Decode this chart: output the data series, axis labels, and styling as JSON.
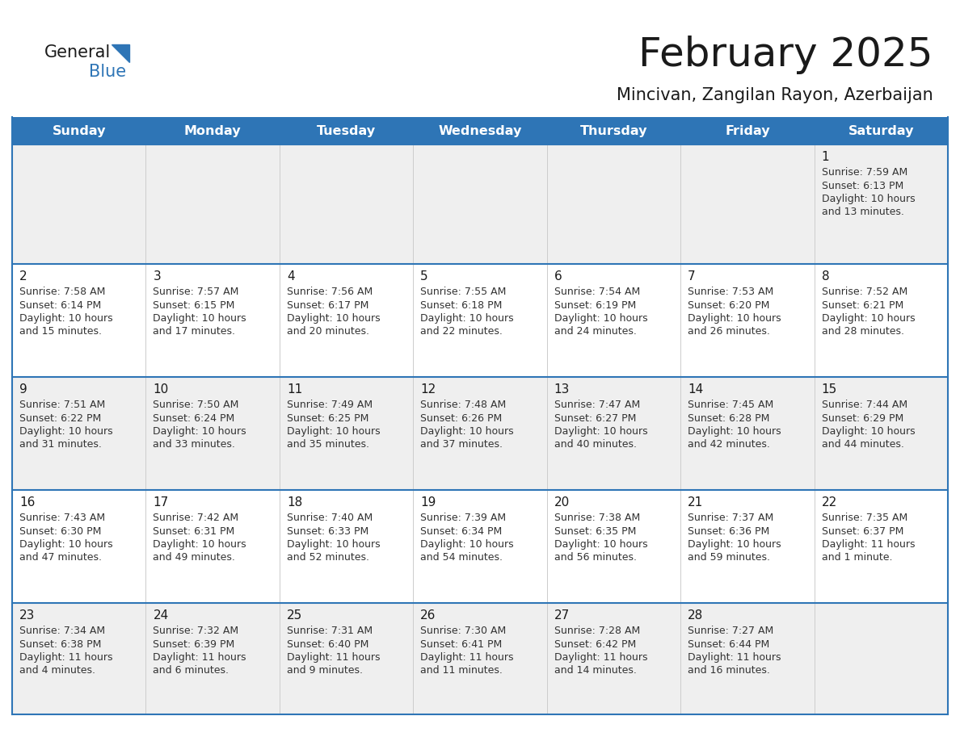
{
  "title": "February 2025",
  "subtitle": "Mincivan, Zangilan Rayon, Azerbaijan",
  "header_bg": "#2E75B6",
  "header_text": "#FFFFFF",
  "row_bg_odd": "#EFEFEF",
  "row_bg_even": "#FFFFFF",
  "border_color": "#2E75B6",
  "day_headers": [
    "Sunday",
    "Monday",
    "Tuesday",
    "Wednesday",
    "Thursday",
    "Friday",
    "Saturday"
  ],
  "title_color": "#1a1a1a",
  "subtitle_color": "#1a1a1a",
  "day_num_color": "#1a1a1a",
  "cell_text_color": "#333333",
  "logo_general_color": "#1a1a1a",
  "logo_blue_color": "#2E75B6",
  "logo_triangle_color": "#2E75B6",
  "calendar": [
    [
      null,
      null,
      null,
      null,
      null,
      null,
      {
        "day": 1,
        "lines": [
          "Sunrise: 7:59 AM",
          "Sunset: 6:13 PM",
          "Daylight: 10 hours",
          "and 13 minutes."
        ]
      }
    ],
    [
      {
        "day": 2,
        "lines": [
          "Sunrise: 7:58 AM",
          "Sunset: 6:14 PM",
          "Daylight: 10 hours",
          "and 15 minutes."
        ]
      },
      {
        "day": 3,
        "lines": [
          "Sunrise: 7:57 AM",
          "Sunset: 6:15 PM",
          "Daylight: 10 hours",
          "and 17 minutes."
        ]
      },
      {
        "day": 4,
        "lines": [
          "Sunrise: 7:56 AM",
          "Sunset: 6:17 PM",
          "Daylight: 10 hours",
          "and 20 minutes."
        ]
      },
      {
        "day": 5,
        "lines": [
          "Sunrise: 7:55 AM",
          "Sunset: 6:18 PM",
          "Daylight: 10 hours",
          "and 22 minutes."
        ]
      },
      {
        "day": 6,
        "lines": [
          "Sunrise: 7:54 AM",
          "Sunset: 6:19 PM",
          "Daylight: 10 hours",
          "and 24 minutes."
        ]
      },
      {
        "day": 7,
        "lines": [
          "Sunrise: 7:53 AM",
          "Sunset: 6:20 PM",
          "Daylight: 10 hours",
          "and 26 minutes."
        ]
      },
      {
        "day": 8,
        "lines": [
          "Sunrise: 7:52 AM",
          "Sunset: 6:21 PM",
          "Daylight: 10 hours",
          "and 28 minutes."
        ]
      }
    ],
    [
      {
        "day": 9,
        "lines": [
          "Sunrise: 7:51 AM",
          "Sunset: 6:22 PM",
          "Daylight: 10 hours",
          "and 31 minutes."
        ]
      },
      {
        "day": 10,
        "lines": [
          "Sunrise: 7:50 AM",
          "Sunset: 6:24 PM",
          "Daylight: 10 hours",
          "and 33 minutes."
        ]
      },
      {
        "day": 11,
        "lines": [
          "Sunrise: 7:49 AM",
          "Sunset: 6:25 PM",
          "Daylight: 10 hours",
          "and 35 minutes."
        ]
      },
      {
        "day": 12,
        "lines": [
          "Sunrise: 7:48 AM",
          "Sunset: 6:26 PM",
          "Daylight: 10 hours",
          "and 37 minutes."
        ]
      },
      {
        "day": 13,
        "lines": [
          "Sunrise: 7:47 AM",
          "Sunset: 6:27 PM",
          "Daylight: 10 hours",
          "and 40 minutes."
        ]
      },
      {
        "day": 14,
        "lines": [
          "Sunrise: 7:45 AM",
          "Sunset: 6:28 PM",
          "Daylight: 10 hours",
          "and 42 minutes."
        ]
      },
      {
        "day": 15,
        "lines": [
          "Sunrise: 7:44 AM",
          "Sunset: 6:29 PM",
          "Daylight: 10 hours",
          "and 44 minutes."
        ]
      }
    ],
    [
      {
        "day": 16,
        "lines": [
          "Sunrise: 7:43 AM",
          "Sunset: 6:30 PM",
          "Daylight: 10 hours",
          "and 47 minutes."
        ]
      },
      {
        "day": 17,
        "lines": [
          "Sunrise: 7:42 AM",
          "Sunset: 6:31 PM",
          "Daylight: 10 hours",
          "and 49 minutes."
        ]
      },
      {
        "day": 18,
        "lines": [
          "Sunrise: 7:40 AM",
          "Sunset: 6:33 PM",
          "Daylight: 10 hours",
          "and 52 minutes."
        ]
      },
      {
        "day": 19,
        "lines": [
          "Sunrise: 7:39 AM",
          "Sunset: 6:34 PM",
          "Daylight: 10 hours",
          "and 54 minutes."
        ]
      },
      {
        "day": 20,
        "lines": [
          "Sunrise: 7:38 AM",
          "Sunset: 6:35 PM",
          "Daylight: 10 hours",
          "and 56 minutes."
        ]
      },
      {
        "day": 21,
        "lines": [
          "Sunrise: 7:37 AM",
          "Sunset: 6:36 PM",
          "Daylight: 10 hours",
          "and 59 minutes."
        ]
      },
      {
        "day": 22,
        "lines": [
          "Sunrise: 7:35 AM",
          "Sunset: 6:37 PM",
          "Daylight: 11 hours",
          "and 1 minute."
        ]
      }
    ],
    [
      {
        "day": 23,
        "lines": [
          "Sunrise: 7:34 AM",
          "Sunset: 6:38 PM",
          "Daylight: 11 hours",
          "and 4 minutes."
        ]
      },
      {
        "day": 24,
        "lines": [
          "Sunrise: 7:32 AM",
          "Sunset: 6:39 PM",
          "Daylight: 11 hours",
          "and 6 minutes."
        ]
      },
      {
        "day": 25,
        "lines": [
          "Sunrise: 7:31 AM",
          "Sunset: 6:40 PM",
          "Daylight: 11 hours",
          "and 9 minutes."
        ]
      },
      {
        "day": 26,
        "lines": [
          "Sunrise: 7:30 AM",
          "Sunset: 6:41 PM",
          "Daylight: 11 hours",
          "and 11 minutes."
        ]
      },
      {
        "day": 27,
        "lines": [
          "Sunrise: 7:28 AM",
          "Sunset: 6:42 PM",
          "Daylight: 11 hours",
          "and 14 minutes."
        ]
      },
      {
        "day": 28,
        "lines": [
          "Sunrise: 7:27 AM",
          "Sunset: 6:44 PM",
          "Daylight: 11 hours",
          "and 16 minutes."
        ]
      },
      null
    ]
  ]
}
